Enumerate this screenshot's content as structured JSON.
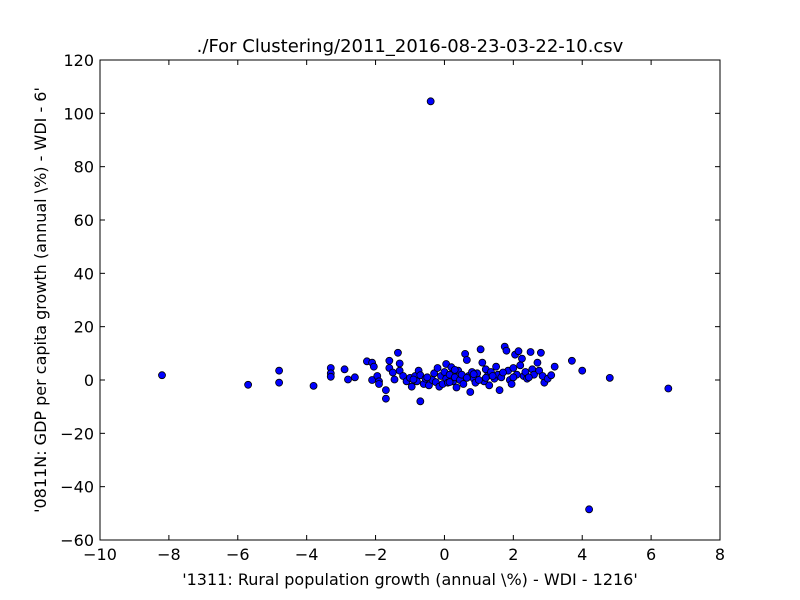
{
  "chart_data": {
    "type": "scatter",
    "title": "./For Clustering/2011_2016-08-23-03-22-10.csv",
    "xlabel": "'1311: Rural population growth  (annual \\%) - WDI - 1216'",
    "ylabel": "'0811N: GDP per capita growth  (annual \\%) - WDI - 6'",
    "xlim": [
      -10,
      8
    ],
    "ylim": [
      -60,
      120
    ],
    "xticks": [
      -10,
      -8,
      -6,
      -4,
      -2,
      0,
      2,
      4,
      6,
      8
    ],
    "yticks": [
      -60,
      -40,
      -20,
      0,
      20,
      40,
      60,
      80,
      100,
      120
    ],
    "xtick_labels": [
      "−10",
      "−8",
      "−6",
      "−4",
      "−2",
      "0",
      "2",
      "4",
      "6",
      "8"
    ],
    "ytick_labels": [
      "−60",
      "−40",
      "−20",
      "0",
      "20",
      "40",
      "60",
      "80",
      "100",
      "120"
    ],
    "grid": false,
    "marker_color": "#0000ff",
    "marker_edge_color": "#000000",
    "points": [
      {
        "x": -8.2,
        "y": 1.8
      },
      {
        "x": -5.7,
        "y": -1.8
      },
      {
        "x": -4.8,
        "y": 3.5
      },
      {
        "x": -4.8,
        "y": -1.0
      },
      {
        "x": -3.8,
        "y": -2.2
      },
      {
        "x": -3.3,
        "y": 4.5
      },
      {
        "x": -3.3,
        "y": 2.5
      },
      {
        "x": -3.3,
        "y": 1.2
      },
      {
        "x": -2.9,
        "y": 4.0
      },
      {
        "x": -2.8,
        "y": 0.2
      },
      {
        "x": -2.6,
        "y": 1.0
      },
      {
        "x": -2.25,
        "y": 7.0
      },
      {
        "x": -2.1,
        "y": 6.5
      },
      {
        "x": -2.1,
        "y": 0.0
      },
      {
        "x": -2.05,
        "y": 5.0
      },
      {
        "x": -1.95,
        "y": 1.5
      },
      {
        "x": -1.9,
        "y": -0.5
      },
      {
        "x": -1.9,
        "y": -1.5
      },
      {
        "x": -1.7,
        "y": -3.8
      },
      {
        "x": -1.7,
        "y": -7.0
      },
      {
        "x": -1.6,
        "y": 7.2
      },
      {
        "x": -1.6,
        "y": 4.5
      },
      {
        "x": -1.5,
        "y": 2.8
      },
      {
        "x": -1.45,
        "y": 0.2
      },
      {
        "x": -1.35,
        "y": 10.2
      },
      {
        "x": -1.3,
        "y": 6.2
      },
      {
        "x": -1.3,
        "y": 3.5
      },
      {
        "x": -1.2,
        "y": 1.5
      },
      {
        "x": -1.1,
        "y": -0.5
      },
      {
        "x": -1.0,
        "y": 0.8
      },
      {
        "x": -0.95,
        "y": -2.5
      },
      {
        "x": -0.85,
        "y": 1.5
      },
      {
        "x": -0.8,
        "y": -0.5
      },
      {
        "x": -0.75,
        "y": 3.5
      },
      {
        "x": -0.7,
        "y": -8.0
      },
      {
        "x": -0.7,
        "y": 1.8
      },
      {
        "x": -0.6,
        "y": -1.5
      },
      {
        "x": -0.55,
        "y": 0.5
      },
      {
        "x": -0.45,
        "y": -2.0
      },
      {
        "x": -0.4,
        "y": 104.5
      },
      {
        "x": -0.35,
        "y": 0.0
      },
      {
        "x": -0.3,
        "y": 2.5
      },
      {
        "x": -0.25,
        "y": -0.8
      },
      {
        "x": -0.2,
        "y": 4.5
      },
      {
        "x": -0.15,
        "y": -2.5
      },
      {
        "x": -0.1,
        "y": 1.5
      },
      {
        "x": -0.05,
        "y": -1.5
      },
      {
        "x": 0.0,
        "y": 3.0
      },
      {
        "x": 0.05,
        "y": 6.0
      },
      {
        "x": 0.05,
        "y": 0.5
      },
      {
        "x": 0.1,
        "y": -1.0
      },
      {
        "x": 0.15,
        "y": 2.0
      },
      {
        "x": 0.2,
        "y": 4.8
      },
      {
        "x": 0.25,
        "y": -0.5
      },
      {
        "x": 0.3,
        "y": 1.0
      },
      {
        "x": 0.35,
        "y": -2.8
      },
      {
        "x": 0.4,
        "y": 3.5
      },
      {
        "x": 0.45,
        "y": 0.0
      },
      {
        "x": 0.5,
        "y": 2.0
      },
      {
        "x": 0.55,
        "y": -1.5
      },
      {
        "x": 0.6,
        "y": 9.8
      },
      {
        "x": 0.65,
        "y": 7.5
      },
      {
        "x": 0.7,
        "y": 1.5
      },
      {
        "x": 0.75,
        "y": -4.5
      },
      {
        "x": 0.8,
        "y": 3.0
      },
      {
        "x": 0.85,
        "y": 0.5
      },
      {
        "x": 0.9,
        "y": -1.0
      },
      {
        "x": 0.95,
        "y": 2.5
      },
      {
        "x": 1.05,
        "y": 11.5
      },
      {
        "x": 1.1,
        "y": 6.5
      },
      {
        "x": 1.15,
        "y": -0.5
      },
      {
        "x": 1.2,
        "y": 4.0
      },
      {
        "x": 1.25,
        "y": 1.5
      },
      {
        "x": 1.3,
        "y": -2.0
      },
      {
        "x": 1.35,
        "y": 3.0
      },
      {
        "x": 1.45,
        "y": 0.5
      },
      {
        "x": 1.5,
        "y": 5.0
      },
      {
        "x": 1.55,
        "y": 2.0
      },
      {
        "x": 1.6,
        "y": -3.8
      },
      {
        "x": 1.65,
        "y": 1.0
      },
      {
        "x": 1.75,
        "y": 12.5
      },
      {
        "x": 1.8,
        "y": 11.0
      },
      {
        "x": 1.85,
        "y": 3.5
      },
      {
        "x": 1.9,
        "y": 0.0
      },
      {
        "x": 1.95,
        "y": -1.5
      },
      {
        "x": 2.0,
        "y": 4.5
      },
      {
        "x": 2.05,
        "y": 9.5
      },
      {
        "x": 2.1,
        "y": 2.0
      },
      {
        "x": 2.15,
        "y": 10.8
      },
      {
        "x": 2.2,
        "y": 5.5
      },
      {
        "x": 2.25,
        "y": 8.0
      },
      {
        "x": 2.3,
        "y": 1.5
      },
      {
        "x": 2.35,
        "y": 3.0
      },
      {
        "x": 2.4,
        "y": 0.5
      },
      {
        "x": 2.5,
        "y": 10.5
      },
      {
        "x": 2.55,
        "y": 4.0
      },
      {
        "x": 2.6,
        "y": 2.0
      },
      {
        "x": 2.7,
        "y": 6.5
      },
      {
        "x": 2.75,
        "y": 3.5
      },
      {
        "x": 2.8,
        "y": 10.2
      },
      {
        "x": 2.85,
        "y": 1.5
      },
      {
        "x": 2.9,
        "y": -1.0
      },
      {
        "x": 3.0,
        "y": 0.5
      },
      {
        "x": 3.1,
        "y": 1.8
      },
      {
        "x": 3.2,
        "y": 5.0
      },
      {
        "x": 3.7,
        "y": 7.2
      },
      {
        "x": 4.0,
        "y": 3.5
      },
      {
        "x": 4.2,
        "y": -48.5
      },
      {
        "x": 4.8,
        "y": 0.8
      },
      {
        "x": 6.5,
        "y": -3.2
      },
      {
        "x": -0.5,
        "y": 1.0
      },
      {
        "x": 0.15,
        "y": -0.8
      },
      {
        "x": 0.65,
        "y": 0.8
      },
      {
        "x": 1.0,
        "y": 0.0
      },
      {
        "x": 1.4,
        "y": 1.5
      },
      {
        "x": 1.7,
        "y": 2.8
      },
      {
        "x": 2.45,
        "y": 1.0
      },
      {
        "x": -0.9,
        "y": 0.2
      },
      {
        "x": 0.3,
        "y": 3.8
      },
      {
        "x": 0.85,
        "y": 2.2
      },
      {
        "x": 1.2,
        "y": 0.8
      },
      {
        "x": 2.0,
        "y": 1.0
      }
    ]
  }
}
